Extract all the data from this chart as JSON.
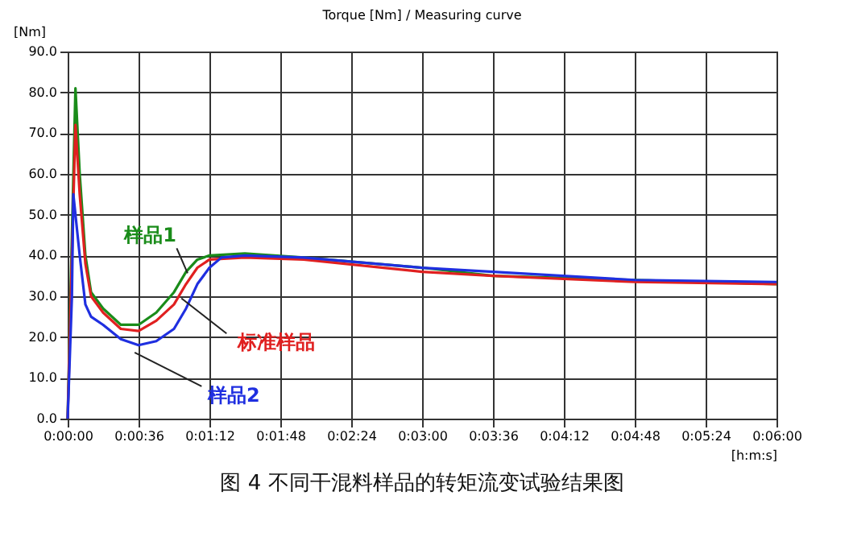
{
  "chart_data": {
    "type": "line",
    "title": "Torque [Nm] / Measuring curve",
    "xlabel": "[h:m:s]",
    "ylabel": "[Nm]",
    "annotations": [
      "图 4  不同干混料样品的转矩流变试验结果图"
    ],
    "xlim": [
      0,
      0.1
    ],
    "xticks": [
      {
        "value": 0,
        "label": "0:00:00"
      },
      {
        "value": 0.01,
        "label": "0:00:36"
      },
      {
        "value": 0.02,
        "label": "0:01:12"
      },
      {
        "value": 0.03,
        "label": "0:01:48"
      },
      {
        "value": 0.04,
        "label": "0:02:24"
      },
      {
        "value": 0.05,
        "label": "0:03:00"
      },
      {
        "value": 0.06,
        "label": "0:03:36"
      },
      {
        "value": 0.07,
        "label": "0:04:12"
      },
      {
        "value": 0.08,
        "label": "0:04:48"
      },
      {
        "value": 0.09,
        "label": "0:05:24"
      },
      {
        "value": 0.1,
        "label": "0:06:00"
      }
    ],
    "ylim": [
      0,
      90
    ],
    "yticks": [
      {
        "value": 0,
        "label": "0.0"
      },
      {
        "value": 10,
        "label": "10.0"
      },
      {
        "value": 20,
        "label": "20.0"
      },
      {
        "value": 30,
        "label": "30.0"
      },
      {
        "value": 40,
        "label": "40.0"
      },
      {
        "value": 50,
        "label": "50.0"
      },
      {
        "value": 60,
        "label": "60.0"
      },
      {
        "value": 70,
        "label": "70.0"
      },
      {
        "value": 80,
        "label": "80.0"
      },
      {
        "value": 90,
        "label": "90.0"
      }
    ],
    "grid": true,
    "marker": "none",
    "line_style": "solid",
    "series": [
      {
        "name": "样品1",
        "color": "#1a8c1a",
        "x": [
          0,
          0.0006,
          0.0011,
          0.0017,
          0.0025,
          0.0033,
          0.005,
          0.0075,
          0.01,
          0.0125,
          0.015,
          0.0167,
          0.0183,
          0.02,
          0.025,
          0.0333,
          0.05,
          0.06,
          0.08,
          0.1
        ],
        "values": [
          0,
          45,
          81,
          60,
          40,
          31,
          27,
          23,
          23,
          26,
          31,
          36,
          39,
          40,
          40.5,
          39.5,
          37,
          35,
          34,
          33
        ]
      },
      {
        "name": "标准样品",
        "color": "#e02020",
        "x": [
          0,
          0.0006,
          0.0011,
          0.0017,
          0.0025,
          0.0033,
          0.005,
          0.0075,
          0.01,
          0.0125,
          0.015,
          0.0167,
          0.0183,
          0.02,
          0.025,
          0.0333,
          0.05,
          0.06,
          0.08,
          0.1
        ],
        "values": [
          0,
          40,
          72,
          55,
          38,
          30,
          26,
          22,
          21.5,
          24,
          28,
          33,
          37,
          39,
          39.5,
          39,
          36,
          35,
          33.5,
          33
        ]
      },
      {
        "name": "样品2",
        "color": "#1f2fe0",
        "x": [
          0,
          0.0006,
          0.0008,
          0.0017,
          0.0025,
          0.0033,
          0.005,
          0.0075,
          0.01,
          0.0125,
          0.015,
          0.0167,
          0.0183,
          0.02,
          0.0217,
          0.025,
          0.0333,
          0.05,
          0.06,
          0.08,
          0.1
        ],
        "values": [
          0,
          30,
          55,
          40,
          28,
          25,
          23,
          19.5,
          18,
          19,
          22,
          27,
          33,
          37,
          39.5,
          40,
          39.5,
          37,
          36,
          34,
          33.5
        ]
      }
    ]
  }
}
